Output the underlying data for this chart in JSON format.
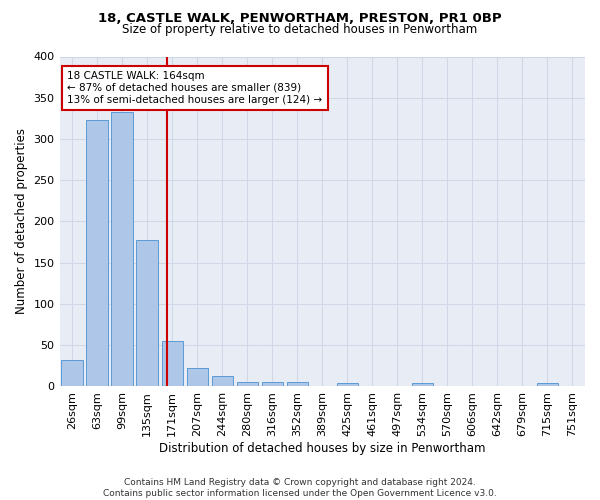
{
  "title1": "18, CASTLE WALK, PENWORTHAM, PRESTON, PR1 0BP",
  "title2": "Size of property relative to detached houses in Penwortham",
  "xlabel": "Distribution of detached houses by size in Penwortham",
  "ylabel": "Number of detached properties",
  "footer1": "Contains HM Land Registry data © Crown copyright and database right 2024.",
  "footer2": "Contains public sector information licensed under the Open Government Licence v3.0.",
  "bar_labels": [
    "26sqm",
    "63sqm",
    "99sqm",
    "135sqm",
    "171sqm",
    "207sqm",
    "244sqm",
    "280sqm",
    "316sqm",
    "352sqm",
    "389sqm",
    "425sqm",
    "461sqm",
    "497sqm",
    "534sqm",
    "570sqm",
    "606sqm",
    "642sqm",
    "679sqm",
    "715sqm",
    "751sqm"
  ],
  "bar_values": [
    32,
    323,
    333,
    178,
    55,
    22,
    13,
    5,
    5,
    5,
    0,
    4,
    0,
    0,
    4,
    0,
    0,
    0,
    0,
    4,
    0
  ],
  "bar_color": "#aec6e8",
  "bar_edgecolor": "#5b9bd5",
  "grid_color": "#d0d8e8",
  "bg_color": "#e8edf5",
  "vline_color": "#cc0000",
  "annotation_line1": "18 CASTLE WALK: 164sqm",
  "annotation_line2": "← 87% of detached houses are smaller (839)",
  "annotation_line3": "13% of semi-detached houses are larger (124) →",
  "annotation_box_color": "#cc0000",
  "ylim": [
    0,
    400
  ],
  "yticks": [
    0,
    50,
    100,
    150,
    200,
    250,
    300,
    350,
    400
  ],
  "title1_fontsize": 9.5,
  "title2_fontsize": 8.5,
  "xlabel_fontsize": 8.5,
  "ylabel_fontsize": 8.5,
  "tick_fontsize": 8,
  "annot_fontsize": 7.5,
  "footer_fontsize": 6.5
}
